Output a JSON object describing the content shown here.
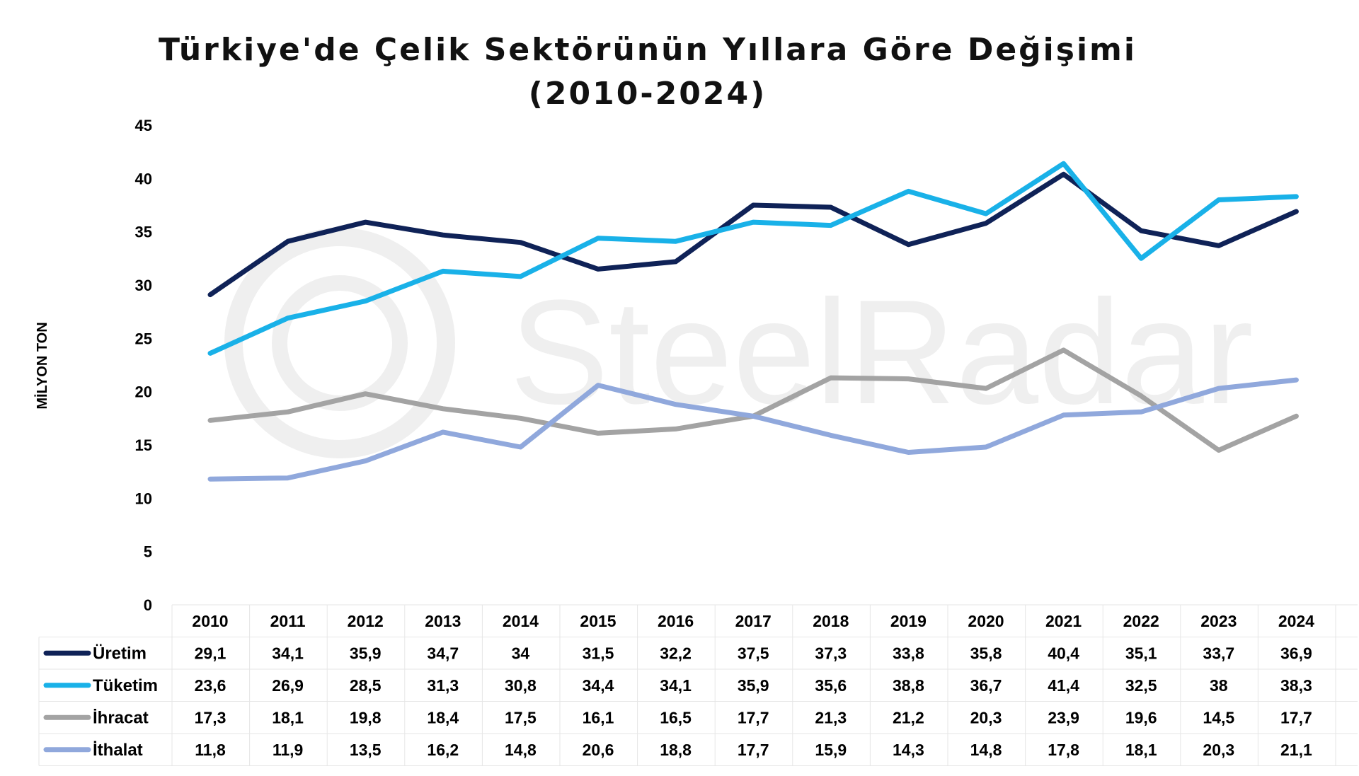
{
  "chart_data": {
    "type": "line",
    "title_line1": "Türkiye'de Çelik Sektörünün Yıllara Göre Değişimi",
    "title_line2": "(2010-2024)",
    "ylabel": "MİLYON TON",
    "xlabel": "",
    "ylim": [
      0,
      45
    ],
    "yticks": [
      0,
      5,
      10,
      15,
      20,
      25,
      30,
      35,
      40,
      45
    ],
    "grid": false,
    "legend": "data-table-below",
    "categories": [
      "2010",
      "2011",
      "2012",
      "2013",
      "2014",
      "2015",
      "2016",
      "2017",
      "2018",
      "2019",
      "2020",
      "2021",
      "2022",
      "2023",
      "2024"
    ],
    "series": [
      {
        "name": "Üretim",
        "color": "#0f2257",
        "values": [
          29.1,
          34.1,
          35.9,
          34.7,
          34,
          31.5,
          32.2,
          37.5,
          37.3,
          33.8,
          35.8,
          40.4,
          35.1,
          33.7,
          36.9
        ],
        "labels": [
          "29,1",
          "34,1",
          "35,9",
          "34,7",
          "34",
          "31,5",
          "32,2",
          "37,5",
          "37,3",
          "33,8",
          "35,8",
          "40,4",
          "35,1",
          "33,7",
          "36,9"
        ]
      },
      {
        "name": "Tüketim",
        "color": "#19b1e8",
        "values": [
          23.6,
          26.9,
          28.5,
          31.3,
          30.8,
          34.4,
          34.1,
          35.9,
          35.6,
          38.8,
          36.7,
          41.4,
          32.5,
          38,
          38.3
        ],
        "labels": [
          "23,6",
          "26,9",
          "28,5",
          "31,3",
          "30,8",
          "34,4",
          "34,1",
          "35,9",
          "35,6",
          "38,8",
          "36,7",
          "41,4",
          "32,5",
          "38",
          "38,3"
        ]
      },
      {
        "name": "İhracat",
        "color": "#a3a3a3",
        "values": [
          17.3,
          18.1,
          19.8,
          18.4,
          17.5,
          16.1,
          16.5,
          17.7,
          21.3,
          21.2,
          20.3,
          23.9,
          19.6,
          14.5,
          17.7
        ],
        "labels": [
          "17,3",
          "18,1",
          "19,8",
          "18,4",
          "17,5",
          "16,1",
          "16,5",
          "17,7",
          "21,3",
          "21,2",
          "20,3",
          "23,9",
          "19,6",
          "14,5",
          "17,7"
        ]
      },
      {
        "name": "İthalat",
        "color": "#90a8dc",
        "values": [
          11.8,
          11.9,
          13.5,
          16.2,
          14.8,
          20.6,
          18.8,
          17.7,
          15.9,
          14.3,
          14.8,
          17.8,
          18.1,
          20.3,
          21.1
        ],
        "labels": [
          "11,8",
          "11,9",
          "13,5",
          "16,2",
          "14,8",
          "20,6",
          "18,8",
          "17,7",
          "15,9",
          "14,3",
          "14,8",
          "17,8",
          "18,1",
          "20,3",
          "21,1"
        ]
      }
    ]
  },
  "watermark": {
    "brand": "SteelRadar",
    "color": "#ececec"
  }
}
